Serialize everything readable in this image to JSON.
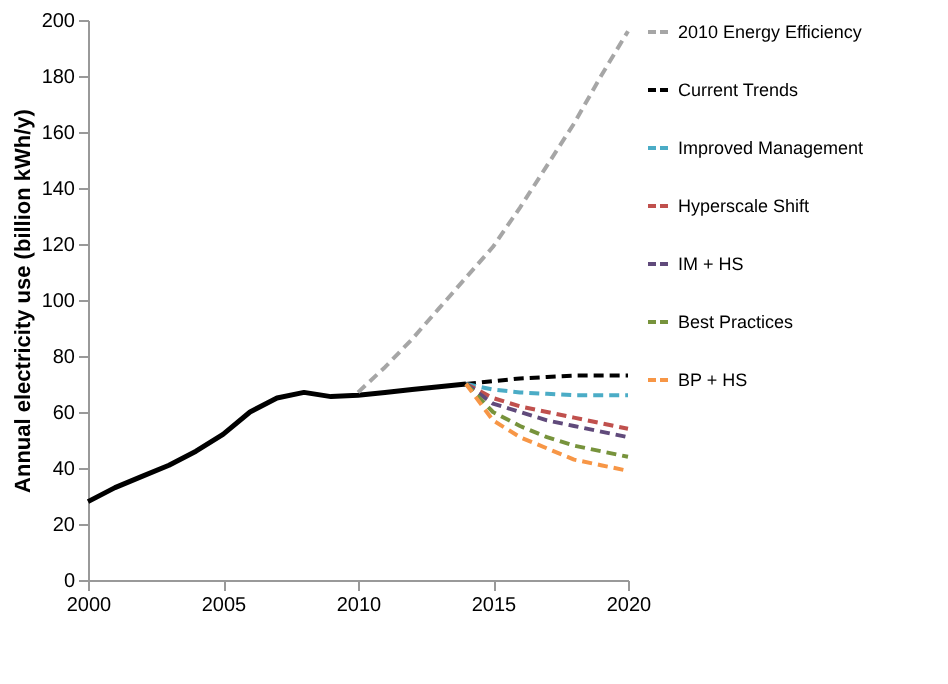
{
  "chart_data": {
    "type": "line",
    "ylabel": "Annual electricity use (billion kWh/y)",
    "xlim": [
      2000,
      2020
    ],
    "xticks": [
      2000,
      2005,
      2010,
      2015,
      2020
    ],
    "ylim": [
      0,
      200
    ],
    "yticks": [
      0,
      20,
      40,
      60,
      80,
      100,
      120,
      140,
      160,
      180,
      200
    ],
    "grid": false,
    "legend": "right",
    "series": [
      {
        "color": "#000000",
        "line_style": "solid",
        "x": [
          2000,
          2001,
          2002,
          2003,
          2004,
          2005,
          2006,
          2007,
          2008,
          2009,
          2010,
          2011,
          2012,
          2013,
          2014
        ],
        "values": [
          28,
          33,
          37,
          41,
          46,
          52,
          60,
          65,
          67,
          65.5,
          66,
          67,
          68,
          69,
          70
        ]
      },
      {
        "name": "2010 Energy Efficiency",
        "color": "#a6a6a6",
        "line_style": "dashed",
        "x": [
          2010,
          2011,
          2012,
          2013,
          2014,
          2015,
          2016,
          2017,
          2018,
          2019,
          2020
        ],
        "values": [
          67,
          76,
          86,
          97,
          108,
          119,
          133,
          148,
          163,
          180,
          196
        ]
      },
      {
        "name": "Current Trends",
        "color": "#000000",
        "line_style": "dashed",
        "x": [
          2014,
          2015,
          2016,
          2017,
          2018,
          2019,
          2020
        ],
        "values": [
          70,
          71,
          72,
          72.5,
          73,
          73,
          73
        ]
      },
      {
        "name": "Improved Management",
        "color": "#4bacc6",
        "line_style": "dashed",
        "x": [
          2014,
          2015,
          2016,
          2017,
          2018,
          2019,
          2020
        ],
        "values": [
          70,
          68,
          67,
          66.5,
          66,
          66,
          66
        ]
      },
      {
        "name": "Hyperscale Shift",
        "color": "#c0504d",
        "line_style": "dashed",
        "x": [
          2014,
          2015,
          2016,
          2017,
          2018,
          2019,
          2020
        ],
        "values": [
          70,
          65,
          62,
          60,
          58,
          56,
          54
        ]
      },
      {
        "name": "IM + HS",
        "color": "#604a7b",
        "line_style": "dashed",
        "x": [
          2014,
          2015,
          2016,
          2017,
          2018,
          2019,
          2020
        ],
        "values": [
          70,
          63,
          60,
          57,
          55,
          53,
          51
        ]
      },
      {
        "name": "Best Practices",
        "color": "#77933c",
        "line_style": "dashed",
        "x": [
          2014,
          2015,
          2016,
          2017,
          2018,
          2019,
          2020
        ],
        "values": [
          70,
          60,
          55,
          51,
          48,
          46,
          44
        ]
      },
      {
        "name": "BP + HS",
        "color": "#f79646",
        "line_style": "dashed",
        "x": [
          2014,
          2015,
          2016,
          2017,
          2018,
          2019,
          2020
        ],
        "values": [
          70,
          57,
          51,
          47,
          43,
          41,
          39
        ]
      }
    ]
  }
}
